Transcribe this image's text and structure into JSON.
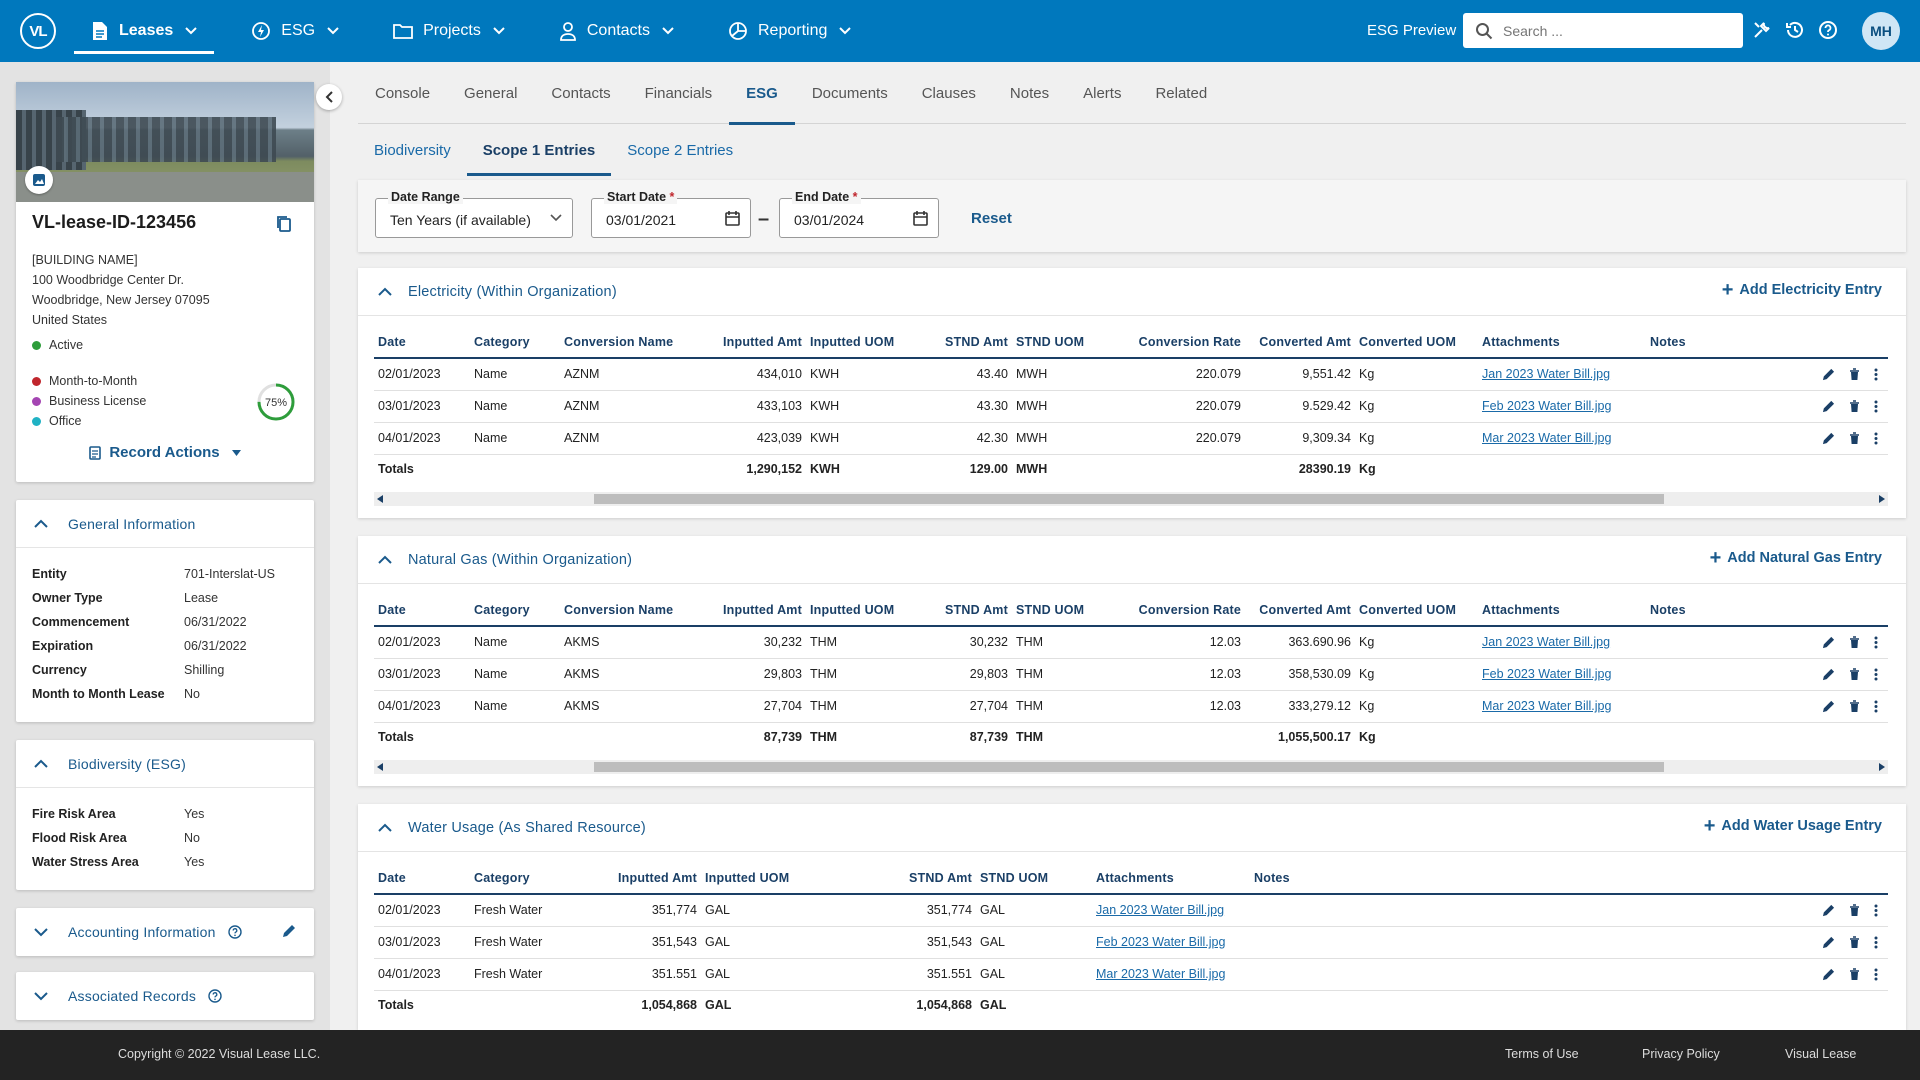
{
  "header": {
    "logo_text": "VL",
    "nav": [
      {
        "label": "Leases",
        "icon": "document-icon"
      },
      {
        "label": "ESG",
        "icon": "bolt-icon"
      },
      {
        "label": "Projects",
        "icon": "folder-icon"
      },
      {
        "label": "Contacts",
        "icon": "person-icon"
      },
      {
        "label": "Reporting",
        "icon": "pie-chart-icon"
      }
    ],
    "esg_preview": "ESG Preview",
    "search_placeholder": "Search ...",
    "avatar_initials": "MH"
  },
  "lease": {
    "id": "VL-lease-ID-123456",
    "building_name": "[BUILDING NAME]",
    "address_line1": "100 Woodbridge Center Dr.",
    "address_line2": "Woodbridge, New Jersey 07095",
    "country": "United States",
    "status": "Active",
    "tags": [
      "Month-to-Month",
      "Business License",
      "Office"
    ],
    "completion": "75%",
    "completion_value": 0.75,
    "record_actions": "Record Actions",
    "colors": {
      "active": "#2e9d3b",
      "month": "#c0262d",
      "business": "#a445b2",
      "office": "#20b2c4"
    }
  },
  "general_info": {
    "title": "General Information",
    "rows": [
      {
        "k": "Entity",
        "v": "701-Interslat-US"
      },
      {
        "k": "Owner Type",
        "v": "Lease"
      },
      {
        "k": "Commencement",
        "v": "06/31/2022"
      },
      {
        "k": "Expiration",
        "v": "06/31/2022"
      },
      {
        "k": "Currency",
        "v": "Shilling"
      },
      {
        "k": "Month to Month Lease",
        "v": "No"
      }
    ]
  },
  "biodiversity_info": {
    "title": "Biodiversity (ESG)",
    "rows": [
      {
        "k": "Fire Risk Area",
        "v": "Yes"
      },
      {
        "k": "Flood Risk Area",
        "v": "No"
      },
      {
        "k": "Water Stress Area",
        "v": "Yes"
      }
    ]
  },
  "accounting": {
    "title": "Accounting Information"
  },
  "associated": {
    "title": "Associated Records"
  },
  "tabs": [
    "Console",
    "General",
    "Contacts",
    "Financials",
    "ESG",
    "Documents",
    "Clauses",
    "Notes",
    "Alerts",
    "Related"
  ],
  "active_tab": "ESG",
  "subtabs": [
    "Biodiversity",
    "Scope 1 Entries",
    "Scope 2 Entries"
  ],
  "active_subtab": "Scope 1 Entries",
  "filters": {
    "date_range_label": "Date Range",
    "date_range_value": "Ten Years (if available)",
    "start_label": "Start Date",
    "start_value": "03/01/2021",
    "end_label": "End Date",
    "end_value": "03/01/2024",
    "dash": "–",
    "reset": "Reset"
  },
  "electricity": {
    "title": "Electricity (Within Organization)",
    "add": "Add Electricity Entry",
    "columns": [
      "Date",
      "Category",
      "Conversion Name",
      "Inputted Amt",
      "Inputted UOM",
      "STND Amt",
      "STND UOM",
      "Conversion Rate",
      "Converted Amt",
      "Converted UOM",
      "Attachments",
      "Notes"
    ],
    "rows": [
      [
        "02/01/2023",
        "Name",
        "AZNM",
        "434,010",
        "KWH",
        "43.40",
        "MWH",
        "220.079",
        "9,551.42",
        "Kg",
        "Jan 2023 Water Bill.jpg",
        ""
      ],
      [
        "03/01/2023",
        "Name",
        "AZNM",
        "433,103",
        "KWH",
        "43.30",
        "MWH",
        "220.079",
        "9.529.42",
        "Kg",
        "Feb 2023 Water Bill.jpg",
        ""
      ],
      [
        "04/01/2023",
        "Name",
        "AZNM",
        "423,039",
        "KWH",
        "42.30",
        "MWH",
        "220.079",
        "9,309.34",
        "Kg",
        "Mar 2023 Water Bill.jpg",
        ""
      ]
    ],
    "totals": [
      "Totals",
      "",
      "",
      "1,290,152",
      "KWH",
      "129.00",
      "MWH",
      "",
      "28390.19",
      "Kg",
      "",
      ""
    ]
  },
  "natural_gas": {
    "title": "Natural Gas (Within Organization)",
    "add": "Add Natural Gas Entry",
    "columns": [
      "Date",
      "Category",
      "Conversion Name",
      "Inputted Amt",
      "Inputted UOM",
      "STND Amt",
      "STND UOM",
      "Conversion Rate",
      "Converted Amt",
      "Converted UOM",
      "Attachments",
      "Notes"
    ],
    "rows": [
      [
        "02/01/2023",
        "Name",
        "AKMS",
        "30,232",
        "THM",
        "30,232",
        "THM",
        "12.03",
        "363.690.96",
        "Kg",
        "Jan 2023 Water Bill.jpg",
        ""
      ],
      [
        "03/01/2023",
        "Name",
        "AKMS",
        "29,803",
        "THM",
        "29,803",
        "THM",
        "12.03",
        "358,530.09",
        "Kg",
        "Feb 2023 Water Bill.jpg",
        ""
      ],
      [
        "04/01/2023",
        "Name",
        "AKMS",
        "27,704",
        "THM",
        "27,704",
        "THM",
        "12.03",
        "333,279.12",
        "Kg",
        "Mar 2023 Water Bill.jpg",
        ""
      ]
    ],
    "totals": [
      "Totals",
      "",
      "",
      "87,739",
      "THM",
      "87,739",
      "THM",
      "",
      "1,055,500.17",
      "Kg",
      "",
      ""
    ]
  },
  "water": {
    "title": "Water Usage (As Shared Resource)",
    "add": "Add  Water Usage Entry",
    "columns": [
      "Date",
      "Category",
      "Inputted Amt",
      "Inputted UOM",
      "STND Amt",
      "STND UOM",
      "Attachments",
      "Notes"
    ],
    "rows": [
      [
        "02/01/2023",
        "Fresh Water",
        "351,774",
        "GAL",
        "351,774",
        "GAL",
        "Jan 2023 Water Bill.jpg",
        ""
      ],
      [
        "03/01/2023",
        "Fresh Water",
        "351,543",
        "GAL",
        "351,543",
        "GAL",
        "Feb 2023 Water Bill.jpg",
        ""
      ],
      [
        "04/01/2023",
        "Fresh Water",
        "351.551",
        "GAL",
        "351.551",
        "GAL",
        "Mar 2023 Water Bill.jpg",
        ""
      ]
    ],
    "totals": [
      "Totals",
      "",
      "1,054,868",
      "GAL",
      "1,054,868",
      "GAL",
      "",
      ""
    ]
  },
  "footer": {
    "copyright": "Copyright © 2022 Visual Lease LLC.",
    "links": [
      "Terms of Use",
      "Privacy Policy",
      "Visual Lease"
    ]
  }
}
